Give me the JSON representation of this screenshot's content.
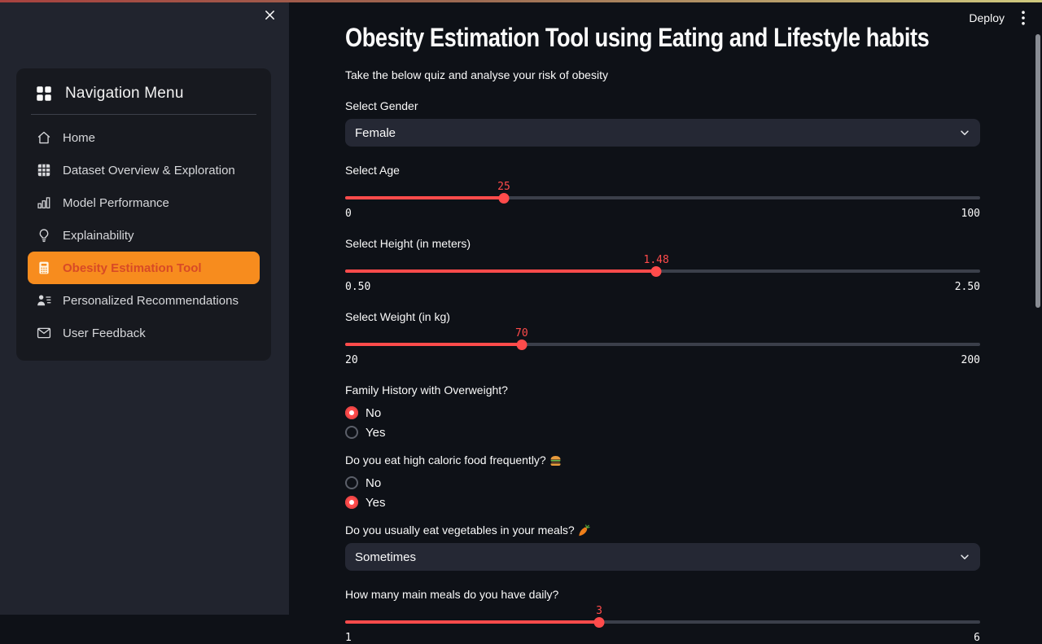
{
  "app": {
    "title": "Obesity Estimation Tool using Eating and Lifestyle habits",
    "subtitle": "Take the below quiz and analyse your risk of obesity",
    "deploy_label": "Deploy"
  },
  "colors": {
    "accent": "#ff4b4b",
    "nav_active_bg": "#f78c1e",
    "nav_active_text": "#d84a26"
  },
  "sidebar": {
    "menu_title": "Navigation Menu",
    "items": [
      {
        "label": "Home",
        "icon": "house-icon",
        "active": false
      },
      {
        "label": "Dataset Overview & Exploration",
        "icon": "table-icon",
        "active": false
      },
      {
        "label": "Model Performance",
        "icon": "bar-chart-icon",
        "active": false
      },
      {
        "label": "Explainability",
        "icon": "lightbulb-icon",
        "active": false
      },
      {
        "label": "Obesity Estimation Tool",
        "icon": "calculator-icon",
        "active": true
      },
      {
        "label": "Personalized Recommendations",
        "icon": "person-lines-icon",
        "active": false
      },
      {
        "label": "User Feedback",
        "icon": "envelope-icon",
        "active": false
      }
    ]
  },
  "form": {
    "gender": {
      "label": "Select Gender",
      "value": "Female"
    },
    "age": {
      "label": "Select Age",
      "value": "25",
      "min": "0",
      "max": "100",
      "percent": 25
    },
    "height": {
      "label": "Select Height (in meters)",
      "value": "1.48",
      "min": "0.50",
      "max": "2.50",
      "percent": 49
    },
    "weight": {
      "label": "Select Weight (in kg)",
      "value": "70",
      "min": "20",
      "max": "200",
      "percent": 27.8
    },
    "family_history": {
      "label": "Family History with Overweight?",
      "options": [
        "No",
        "Yes"
      ],
      "selected": "No"
    },
    "high_caloric": {
      "label": "Do you eat high caloric food frequently?",
      "emoji": "🍔",
      "options": [
        "No",
        "Yes"
      ],
      "selected": "Yes"
    },
    "vegetables": {
      "label": "Do you usually eat vegetables in your meals?",
      "emoji": "🥕",
      "value": "Sometimes"
    },
    "meals": {
      "label": "How many main meals do you have daily?",
      "value": "3",
      "min": "1",
      "max": "6",
      "percent": 40
    }
  }
}
